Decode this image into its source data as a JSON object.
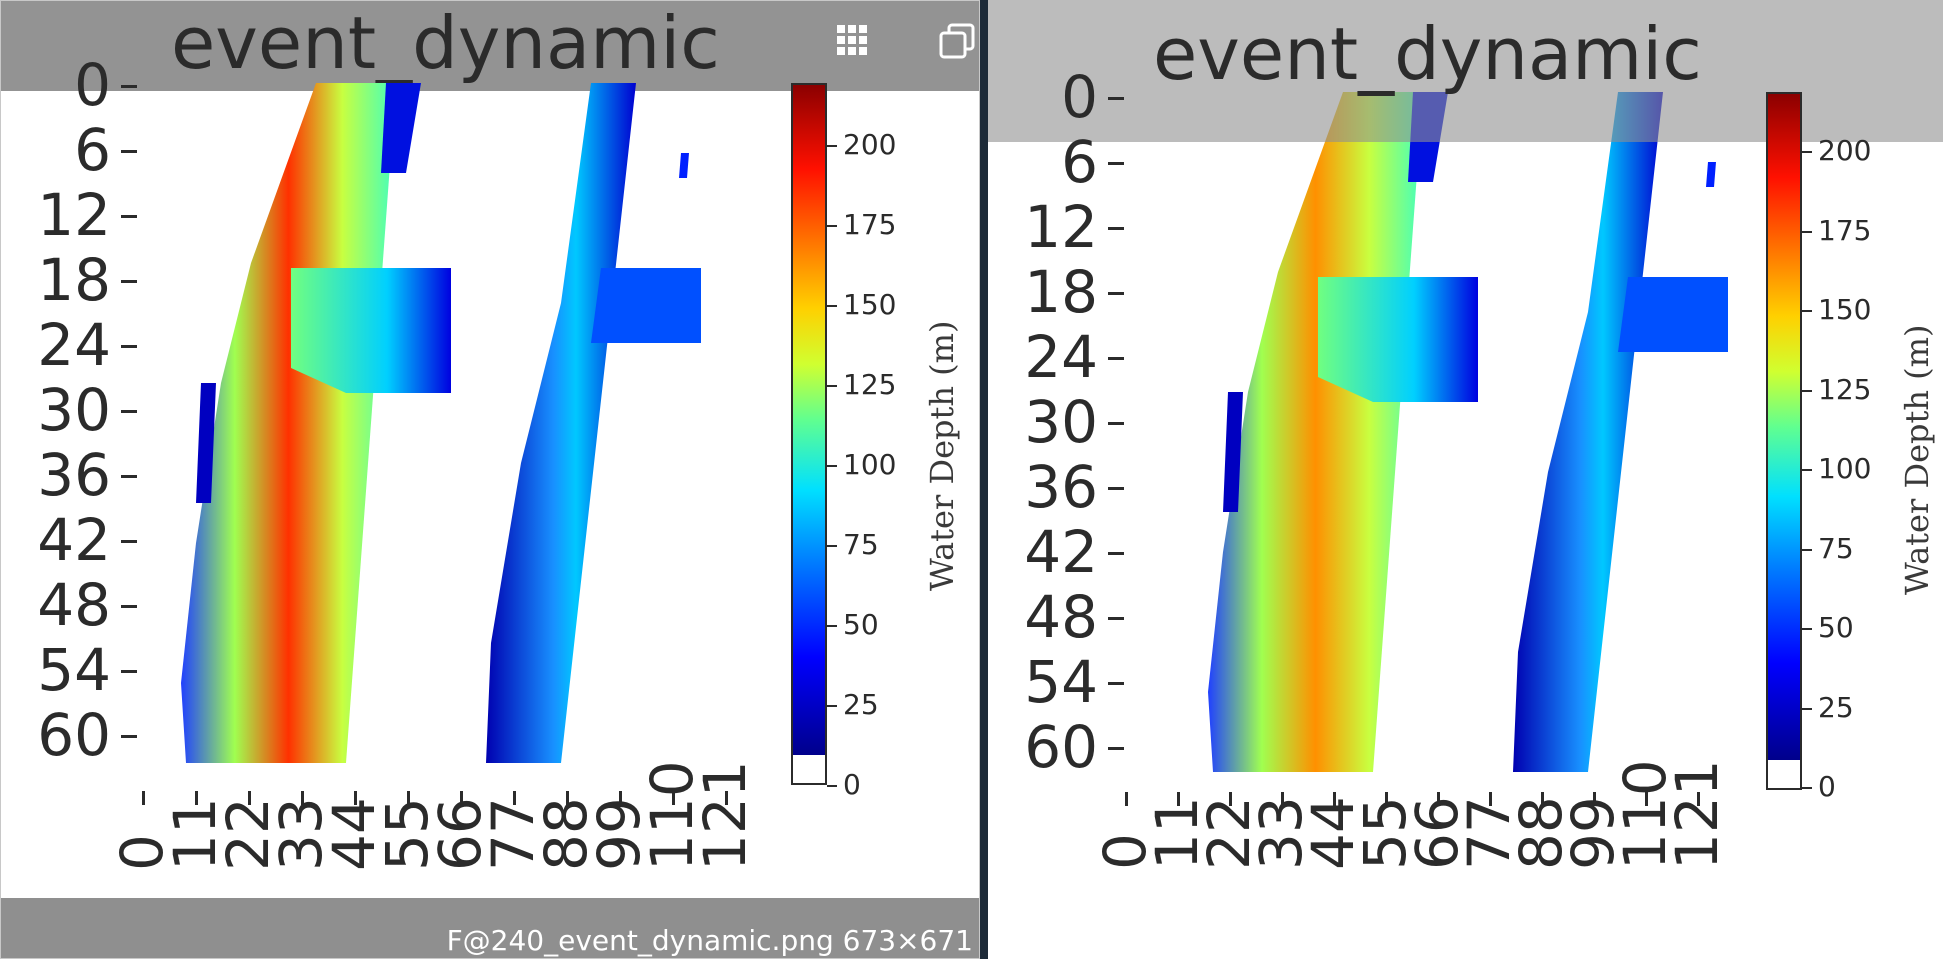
{
  "panels": [
    {
      "id": "left",
      "title": "event_dynamic",
      "y_ticks": [
        "0",
        "6",
        "12",
        "18",
        "24",
        "30",
        "36",
        "42",
        "48",
        "54",
        "60"
      ],
      "x_ticks": [
        "0",
        "11",
        "22",
        "33",
        "44",
        "55",
        "66",
        "77",
        "88",
        "99",
        "110",
        "121"
      ],
      "colorbar": {
        "label": "Water Depth (m)",
        "ticks": [
          "0",
          "25",
          "50",
          "75",
          "100",
          "125",
          "150",
          "175",
          "200"
        ]
      },
      "toolbar": {
        "grid_icon": "grid-icon",
        "copy_icon": "copy-icon"
      },
      "footer": {
        "caption": "F@240_event_dynamic.png 673×671"
      }
    },
    {
      "id": "right",
      "title": "event_dynamic",
      "y_ticks": [
        "0",
        "6",
        "12",
        "18",
        "24",
        "30",
        "36",
        "42",
        "48",
        "54",
        "60"
      ],
      "x_ticks": [
        "0",
        "11",
        "22",
        "33",
        "44",
        "55",
        "66",
        "77",
        "88",
        "99",
        "110",
        "121"
      ],
      "colorbar": {
        "label": "Water Depth (m)",
        "ticks": [
          "0",
          "25",
          "50",
          "75",
          "100",
          "125",
          "150",
          "175",
          "200"
        ]
      }
    }
  ],
  "colors": {
    "header_band": "#8f8f8f",
    "divider": "#1d2a38",
    "text": "#2b2b2b"
  }
}
